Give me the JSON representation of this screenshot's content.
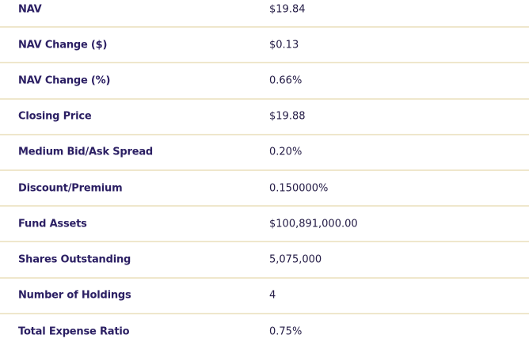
{
  "table": {
    "rows": [
      [
        "NAV",
        "$19.84"
      ],
      [
        "NAV Change ($)",
        "$0.13"
      ],
      [
        "NAV Change (%)",
        "0.66%"
      ],
      [
        "Closing Price",
        "$19.88"
      ],
      [
        "Medium Bid/Ask Spread",
        "0.20%"
      ],
      [
        "Discount/Premium",
        "0.150000%"
      ],
      [
        "Fund Assets",
        "$100,891,000.00"
      ],
      [
        "Shares Outstanding",
        "5,075,000"
      ],
      [
        "Number of Holdings",
        "4"
      ],
      [
        "Total Expense Ratio",
        "0.75%"
      ]
    ]
  }
}
